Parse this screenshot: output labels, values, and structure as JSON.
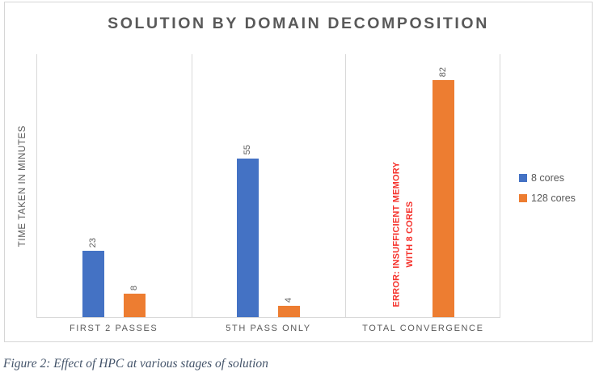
{
  "caption": "Figure 2: Effect of HPC at various stages of solution",
  "chart_data": {
    "type": "bar",
    "title": "SOLUTION BY DOMAIN DECOMPOSITION",
    "xlabel": "",
    "ylabel": "TIME TAKEN IN MINUTES",
    "categories": [
      "FIRST 2 PASSES",
      "5TH PASS ONLY",
      "TOTAL CONVERGENCE"
    ],
    "series": [
      {
        "name": "8 cores",
        "color": "#4472C4",
        "values": [
          23,
          55,
          null
        ]
      },
      {
        "name": "128 cores",
        "color": "#ED7D31",
        "values": [
          8,
          4,
          82
        ]
      }
    ],
    "data_labels": [
      [
        "23",
        "55",
        null
      ],
      [
        "8",
        "4",
        "82"
      ]
    ],
    "ylim": [
      0,
      91
    ],
    "gridlines": "vertical-category-separators-only",
    "legend_position": "right",
    "annotation": {
      "text_lines": [
        "ERROR: INSUFFICIENT MEMORY",
        "WITH 8 CORES"
      ],
      "color": "#F5332D",
      "category": "TOTAL CONVERGENCE",
      "series": "8 cores"
    }
  },
  "legend": {
    "items": [
      {
        "label": "8 cores",
        "color": "#4472C4"
      },
      {
        "label": "128 cores",
        "color": "#ED7D31"
      }
    ]
  },
  "colors": {
    "bar_blue": "#4472C4",
    "bar_orange": "#ED7D31",
    "text_gray": "#595959",
    "axis_line": "#D9D9D9",
    "frame_border": "#D6D6D6",
    "error_red": "#F5332D",
    "caption_blue_gray": "#44546A"
  }
}
